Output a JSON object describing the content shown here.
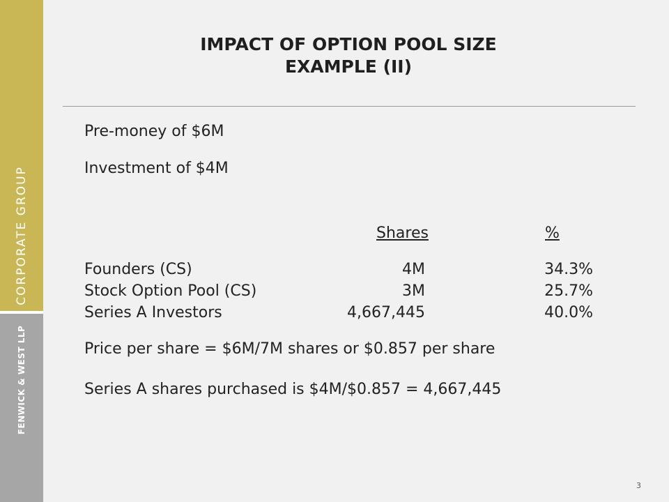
{
  "sidebar": {
    "group_label": "CORPORATE GROUP",
    "firm_label": "FENWICK & WEST LLP",
    "colors": {
      "gold": "#c9b756",
      "gray": "#a6a6a6"
    }
  },
  "slide": {
    "title_line1": "IMPACT OF OPTION POOL SIZE",
    "title_line2": "EXAMPLE (II)",
    "premoney": "Pre-money of $6M",
    "investment": "Investment of $4M",
    "table": {
      "headers": {
        "shares": "Shares",
        "percent": "%"
      },
      "rows": [
        {
          "name": "Founders (CS)",
          "shares": "4M",
          "percent": "34.3%"
        },
        {
          "name": "Stock Option Pool (CS)",
          "shares": "3M",
          "percent": "25.7%"
        },
        {
          "name": "Series A Investors",
          "shares": "4,667,445",
          "percent": "40.0%"
        }
      ]
    },
    "price_line": "Price per share = $6M/7M shares or $0.857 per share",
    "series_line": "Series A shares purchased is $4M/$0.857 = 4,667,445",
    "page_number": "3"
  }
}
